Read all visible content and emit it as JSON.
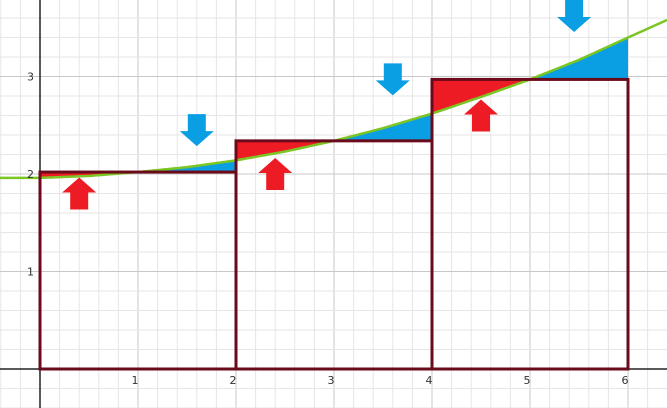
{
  "diagram": {
    "axes": {
      "x_tick_labels": [
        "1",
        "2",
        "3",
        "4",
        "5",
        "6"
      ],
      "y_tick_labels": [
        "1",
        "2",
        "3"
      ]
    },
    "function": {
      "description": "smooth increasing curve",
      "samples": [
        {
          "x": -0.4,
          "y": 1.96
        },
        {
          "x": 0.0,
          "y": 1.96
        },
        {
          "x": 0.5,
          "y": 1.98
        },
        {
          "x": 1.0,
          "y": 2.02
        },
        {
          "x": 1.5,
          "y": 2.07
        },
        {
          "x": 2.0,
          "y": 2.14
        },
        {
          "x": 2.5,
          "y": 2.23
        },
        {
          "x": 3.0,
          "y": 2.34
        },
        {
          "x": 3.5,
          "y": 2.47
        },
        {
          "x": 4.0,
          "y": 2.62
        },
        {
          "x": 4.5,
          "y": 2.79
        },
        {
          "x": 5.0,
          "y": 2.97
        },
        {
          "x": 5.5,
          "y": 3.17
        },
        {
          "x": 6.0,
          "y": 3.4
        },
        {
          "x": 6.4,
          "y": 3.58
        }
      ],
      "color": "#7cc623"
    },
    "rectangles": [
      {
        "x_start": 0,
        "x_end": 2,
        "height": 2.02
      },
      {
        "x_start": 2,
        "x_end": 4,
        "height": 2.34
      },
      {
        "x_start": 4,
        "x_end": 6,
        "height": 2.97
      }
    ],
    "colors": {
      "rect_stroke": "#6b0a1a",
      "overestimate_fill": "#ed1c24",
      "underestimate_fill": "#0a9ee2",
      "grid_major": "#c8c8c8",
      "grid_minor": "#e6e6e6",
      "axis": "#222222"
    },
    "arrows": [
      {
        "name": "up-arrow",
        "direction": "up",
        "color": "#ed1c24",
        "at_x": 0.4,
        "at_y": 1.8
      },
      {
        "name": "down-arrow",
        "direction": "down",
        "color": "#0a9ee2",
        "at_x": 1.6,
        "at_y": 2.45
      },
      {
        "name": "up-arrow",
        "direction": "up",
        "color": "#ed1c24",
        "at_x": 2.4,
        "at_y": 2.0
      },
      {
        "name": "down-arrow",
        "direction": "down",
        "color": "#0a9ee2",
        "at_x": 3.6,
        "at_y": 2.97
      },
      {
        "name": "up-arrow",
        "direction": "up",
        "color": "#ed1c24",
        "at_x": 4.5,
        "at_y": 2.6
      },
      {
        "name": "down-arrow",
        "direction": "down",
        "color": "#0a9ee2",
        "at_x": 5.45,
        "at_y": 3.62
      }
    ]
  }
}
